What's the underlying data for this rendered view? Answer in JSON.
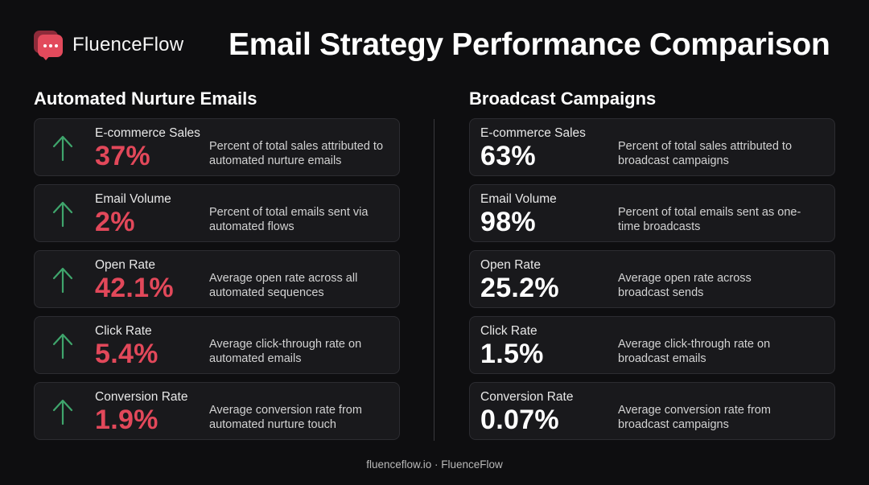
{
  "brand": {
    "name": "FluenceFlow",
    "accent_color": "#e24a5c",
    "logo_icon": "chat-bubble-icon"
  },
  "title": "Email Strategy Performance Comparison",
  "columns": {
    "left": {
      "title": "Automated Nurture Emails",
      "value_color": "#e2485a",
      "trend_icon": "arrow-up-icon",
      "trend_color": "#3fa56c",
      "metrics": [
        {
          "label": "E-commerce Sales",
          "value": "37%",
          "description": "Percent of total sales attributed to automated nurture emails"
        },
        {
          "label": "Email Volume",
          "value": "2%",
          "description": "Percent of total emails sent via automated flows"
        },
        {
          "label": "Open Rate",
          "value": "42.1%",
          "description": "Average open rate across all automated sequences"
        },
        {
          "label": "Click Rate",
          "value": "5.4%",
          "description": "Average click-through rate on automated emails"
        },
        {
          "label": "Conversion Rate",
          "value": "1.9%",
          "description": "Average conversion rate from automated nurture touch"
        }
      ]
    },
    "right": {
      "title": "Broadcast Campaigns",
      "value_color": "#ffffff",
      "metrics": [
        {
          "label": "E-commerce Sales",
          "value": "63%",
          "description": "Percent of total sales attributed to broadcast campaigns"
        },
        {
          "label": "Email Volume",
          "value": "98%",
          "description": "Percent of total emails sent as one-time broadcasts"
        },
        {
          "label": "Open Rate",
          "value": "25.2%",
          "description": "Average open rate across broadcast sends"
        },
        {
          "label": "Click Rate",
          "value": "1.5%",
          "description": "Average click-through rate on broadcast emails"
        },
        {
          "label": "Conversion Rate",
          "value": "0.07%",
          "description": "Average conversion rate from broadcast campaigns"
        }
      ]
    }
  },
  "footer": "fluenceflow.io · FluenceFlow"
}
